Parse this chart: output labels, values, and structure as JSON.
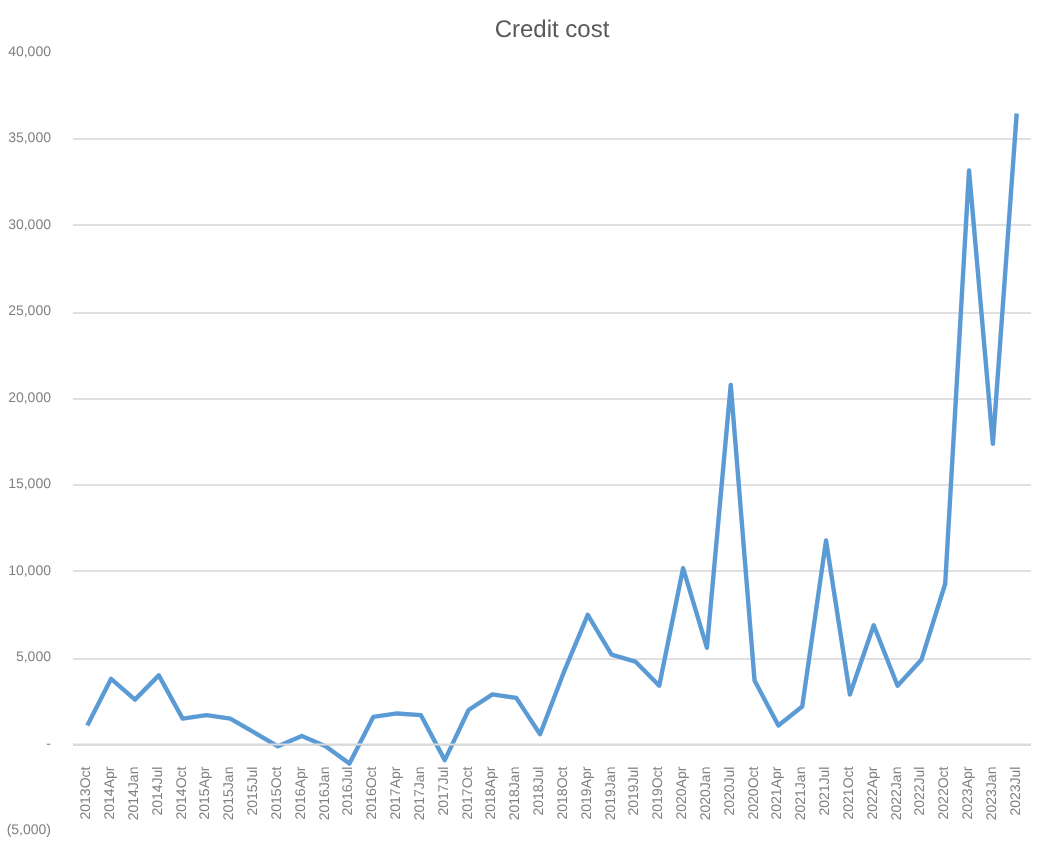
{
  "chart_data": {
    "type": "line",
    "title": "Credit cost",
    "categories": [
      "2013Oct",
      "2014Apr",
      "2014Jan",
      "2014Jul",
      "2014Oct",
      "2015Apr",
      "2015Jan",
      "2015Jul",
      "2015Oct",
      "2016Apr",
      "2016Jan",
      "2016Jul",
      "2016Oct",
      "2017Apr",
      "2017Jan",
      "2017Jul",
      "2017Oct",
      "2018Apr",
      "2018Jan",
      "2018Jul",
      "2018Oct",
      "2019Apr",
      "2019Jan",
      "2019Jul",
      "2019Oct",
      "2020Apr",
      "2020Jan",
      "2020Jul",
      "2020Oct",
      "2021Apr",
      "2021Jan",
      "2021Jul",
      "2021Oct",
      "2022Apr",
      "2022Jan",
      "2022Jul",
      "2022Oct",
      "2023Apr",
      "2023Jan",
      "2023Jul"
    ],
    "series": [
      {
        "color": "#5b9bd5",
        "values": [
          1100,
          3800,
          2600,
          4000,
          1500,
          1700,
          1500,
          700,
          -100,
          500,
          -100,
          -1100,
          1600,
          1800,
          1700,
          -900,
          2000,
          2900,
          2700,
          600,
          4200,
          7500,
          5200,
          4800,
          3400,
          10200,
          5600,
          20800,
          3700,
          1100,
          2200,
          11800,
          2900,
          6900,
          3400,
          4900,
          9300,
          33200,
          17400,
          36500
        ]
      }
    ],
    "ylim": [
      -5000,
      40000
    ],
    "yticks": [
      {
        "value": -5000,
        "label": "(5,000)"
      },
      {
        "value": 0,
        "label": "-"
      },
      {
        "value": 5000,
        "label": "5,000"
      },
      {
        "value": 10000,
        "label": "10,000"
      },
      {
        "value": 15000,
        "label": "15,000"
      },
      {
        "value": 20000,
        "label": "20,000"
      },
      {
        "value": 25000,
        "label": "25,000"
      },
      {
        "value": 30000,
        "label": "30,000"
      },
      {
        "value": 35000,
        "label": "35,000"
      },
      {
        "value": 40000,
        "label": "40,000"
      }
    ],
    "grid": "y",
    "marker": "none",
    "line_style": "solid"
  }
}
